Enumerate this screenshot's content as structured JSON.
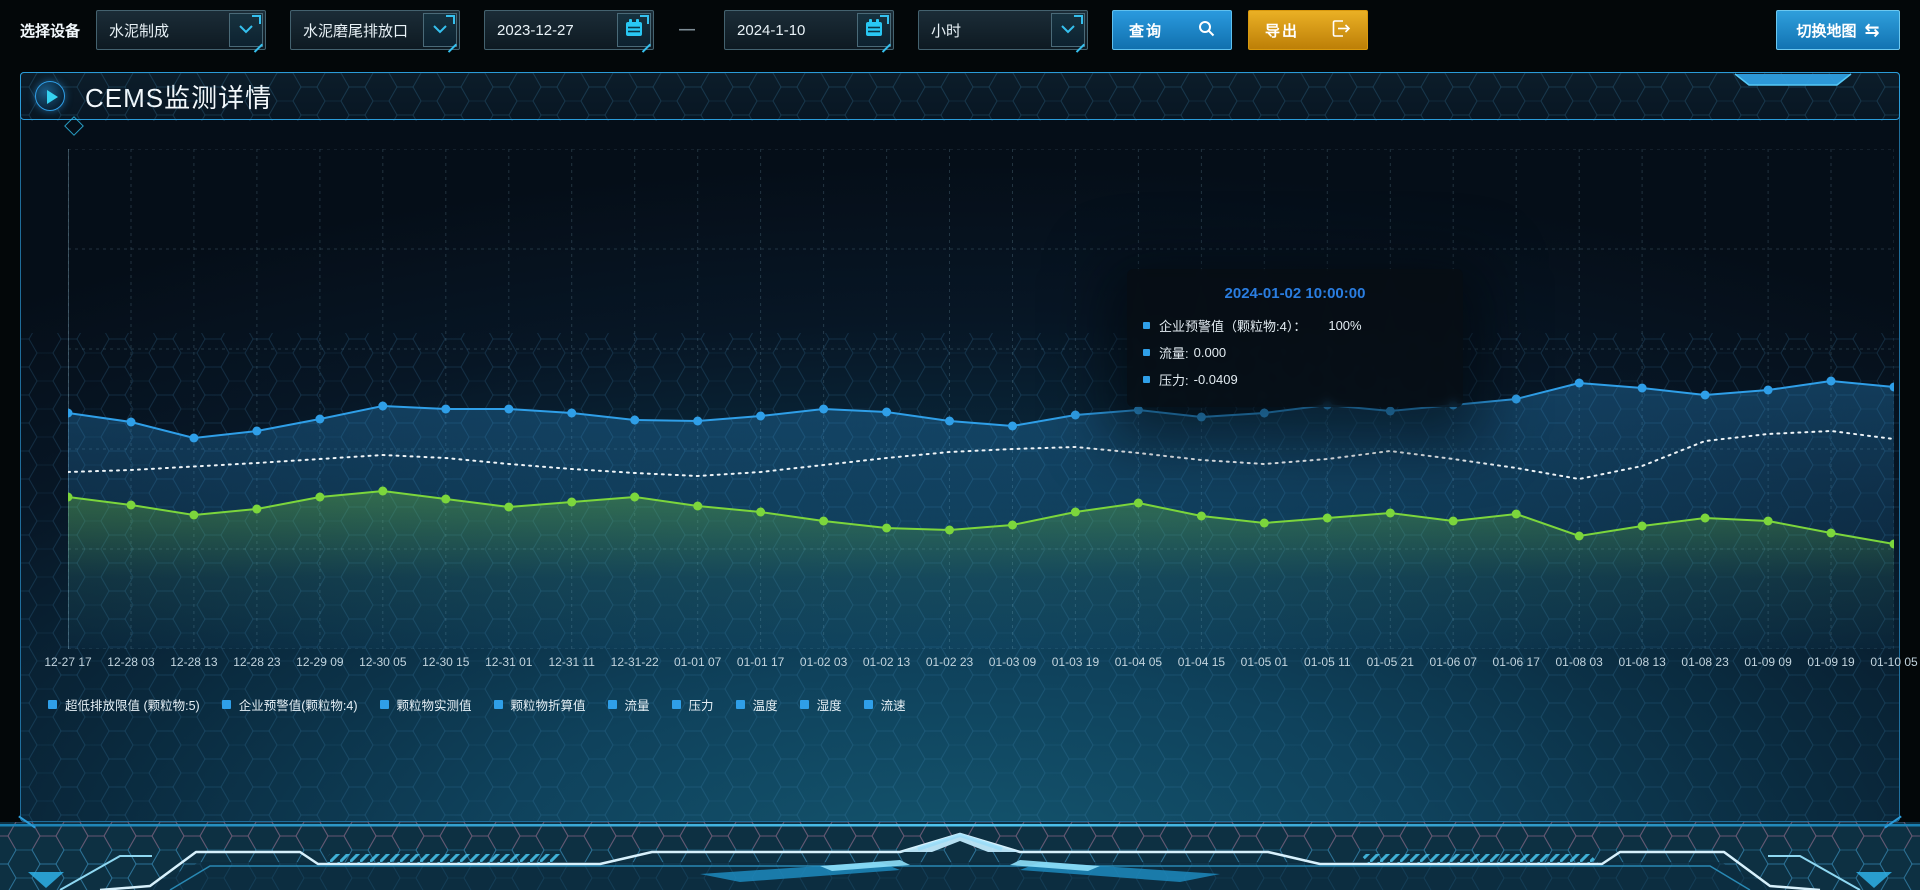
{
  "toolbar": {
    "device_label": "选择设备",
    "selects": [
      {
        "value": "水泥制成"
      },
      {
        "value": "水泥磨尾排放口"
      }
    ],
    "date_start": "2023-12-27",
    "date_separator": "—",
    "date_end": "2024-1-10",
    "interval_select": {
      "value": "小时"
    },
    "query_button": "查询",
    "export_button": "导出",
    "switch_map_button": "切换地图"
  },
  "icons": {
    "swap_glyph": "⇆"
  },
  "panel": {
    "title": "CEMS监测详情"
  },
  "tooltip": {
    "title": "2024-01-02 10:00:00",
    "items": [
      {
        "label": "企业预警值（颗粒物:4）：",
        "value": "100%"
      },
      {
        "label": "流量:",
        "value": "0.000"
      },
      {
        "label": "压力:",
        "value": "-0.0409"
      }
    ]
  },
  "legend": {
    "items": [
      "超低排放限值 (颗粒物:5)",
      "企业预警值(颗粒物:4)",
      "颗粒物实测值",
      "颗粒物折算值",
      "流量",
      "压力",
      "温度",
      "湿度",
      "流速"
    ]
  },
  "chart_data": {
    "type": "line",
    "x_labels": [
      "12-27 17",
      "12-28 03",
      "12-28 13",
      "12-28 23",
      "12-29 09",
      "12-30 05",
      "12-30 15",
      "12-31 01",
      "12-31 11",
      "12-31-22",
      "01-01 07",
      "01-01 17",
      "01-02 03",
      "01-02 13",
      "01-02 23",
      "01-03 09",
      "01-03 19",
      "01-04 05",
      "01-04 15",
      "01-05 01",
      "01-05 11",
      "01-05 21",
      "01-06 07",
      "01-06 17",
      "01-08 03",
      "01-08 13",
      "01-08 23",
      "01-09 09",
      "01-09 19",
      "01-10 05"
    ],
    "y_axis_labels_visible": false,
    "ylim": [
      0,
      100
    ],
    "grid": "dashed",
    "legend_position": "bottom",
    "series": [
      {
        "name": "企业预警值(颗粒物:4)",
        "color": "#2f9fe8",
        "style": "solid",
        "symbol": "circle",
        "area": true,
        "values": [
          47.2,
          45.4,
          42.2,
          43.6,
          46.0,
          48.6,
          48.0,
          48.0,
          47.2,
          45.8,
          45.6,
          46.6,
          48.0,
          47.4,
          45.6,
          44.6,
          46.8,
          47.8,
          46.4,
          47.2,
          48.8,
          47.6,
          48.8,
          50.0,
          53.2,
          52.2,
          50.8,
          51.8,
          53.6,
          52.4
        ]
      },
      {
        "name": "压力",
        "color": "#eef4f8",
        "style": "dotted",
        "symbol": "none",
        "area": false,
        "values": [
          35.4,
          35.8,
          36.5,
          37.2,
          38.0,
          38.8,
          38.2,
          37.0,
          36.0,
          35.2,
          34.6,
          35.4,
          36.8,
          38.2,
          39.4,
          40.0,
          40.4,
          39.2,
          37.8,
          37.0,
          38.0,
          39.6,
          38.0,
          36.2,
          34.0,
          36.6,
          41.6,
          43.0,
          43.6,
          42.0
        ]
      },
      {
        "name": "流量",
        "color": "#7cd63c",
        "style": "solid",
        "symbol": "circle",
        "area": true,
        "values": [
          30.4,
          28.8,
          26.8,
          28.0,
          30.4,
          31.6,
          30.0,
          28.4,
          29.4,
          30.4,
          28.6,
          27.4,
          25.6,
          24.2,
          23.8,
          24.8,
          27.4,
          29.2,
          26.6,
          25.2,
          26.2,
          27.2,
          25.6,
          27.0,
          22.6,
          24.6,
          26.2,
          25.6,
          23.2,
          21.0
        ]
      }
    ]
  },
  "colors": {
    "accent_blue": "#2f9fe8",
    "accent_cyan": "#35c0ee",
    "accent_green": "#7cd63c",
    "export_orange": "#d9990e",
    "tooltip_title_blue": "#2a7de0",
    "panel_border": "#2b9bd8"
  }
}
